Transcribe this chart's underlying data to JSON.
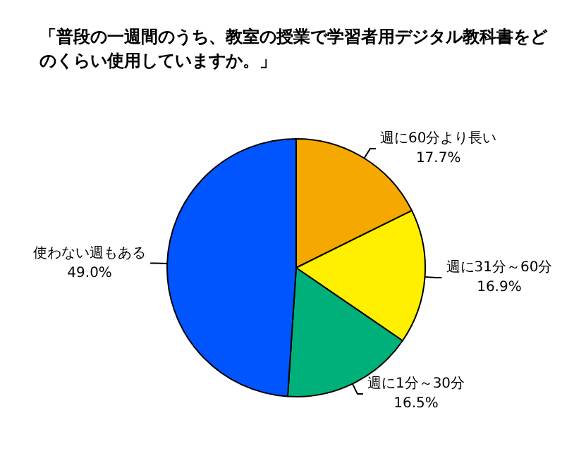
{
  "chart_data": {
    "type": "pie",
    "title": "「普段の一週間のうち、教室の授業で学習者用デジタル教科書をどのくらい使用していますか。」",
    "categories": [
      "週に60分より長い",
      "週に31分～60分",
      "週に1分～30分",
      "使わない週もある"
    ],
    "values": [
      17.7,
      16.9,
      16.5,
      49.0
    ],
    "value_labels": [
      "17.7%",
      "16.9%",
      "16.5%",
      "49.0%"
    ],
    "colors": [
      "#f5a800",
      "#ffef00",
      "#00b07a",
      "#0055ff"
    ],
    "legend": false
  }
}
